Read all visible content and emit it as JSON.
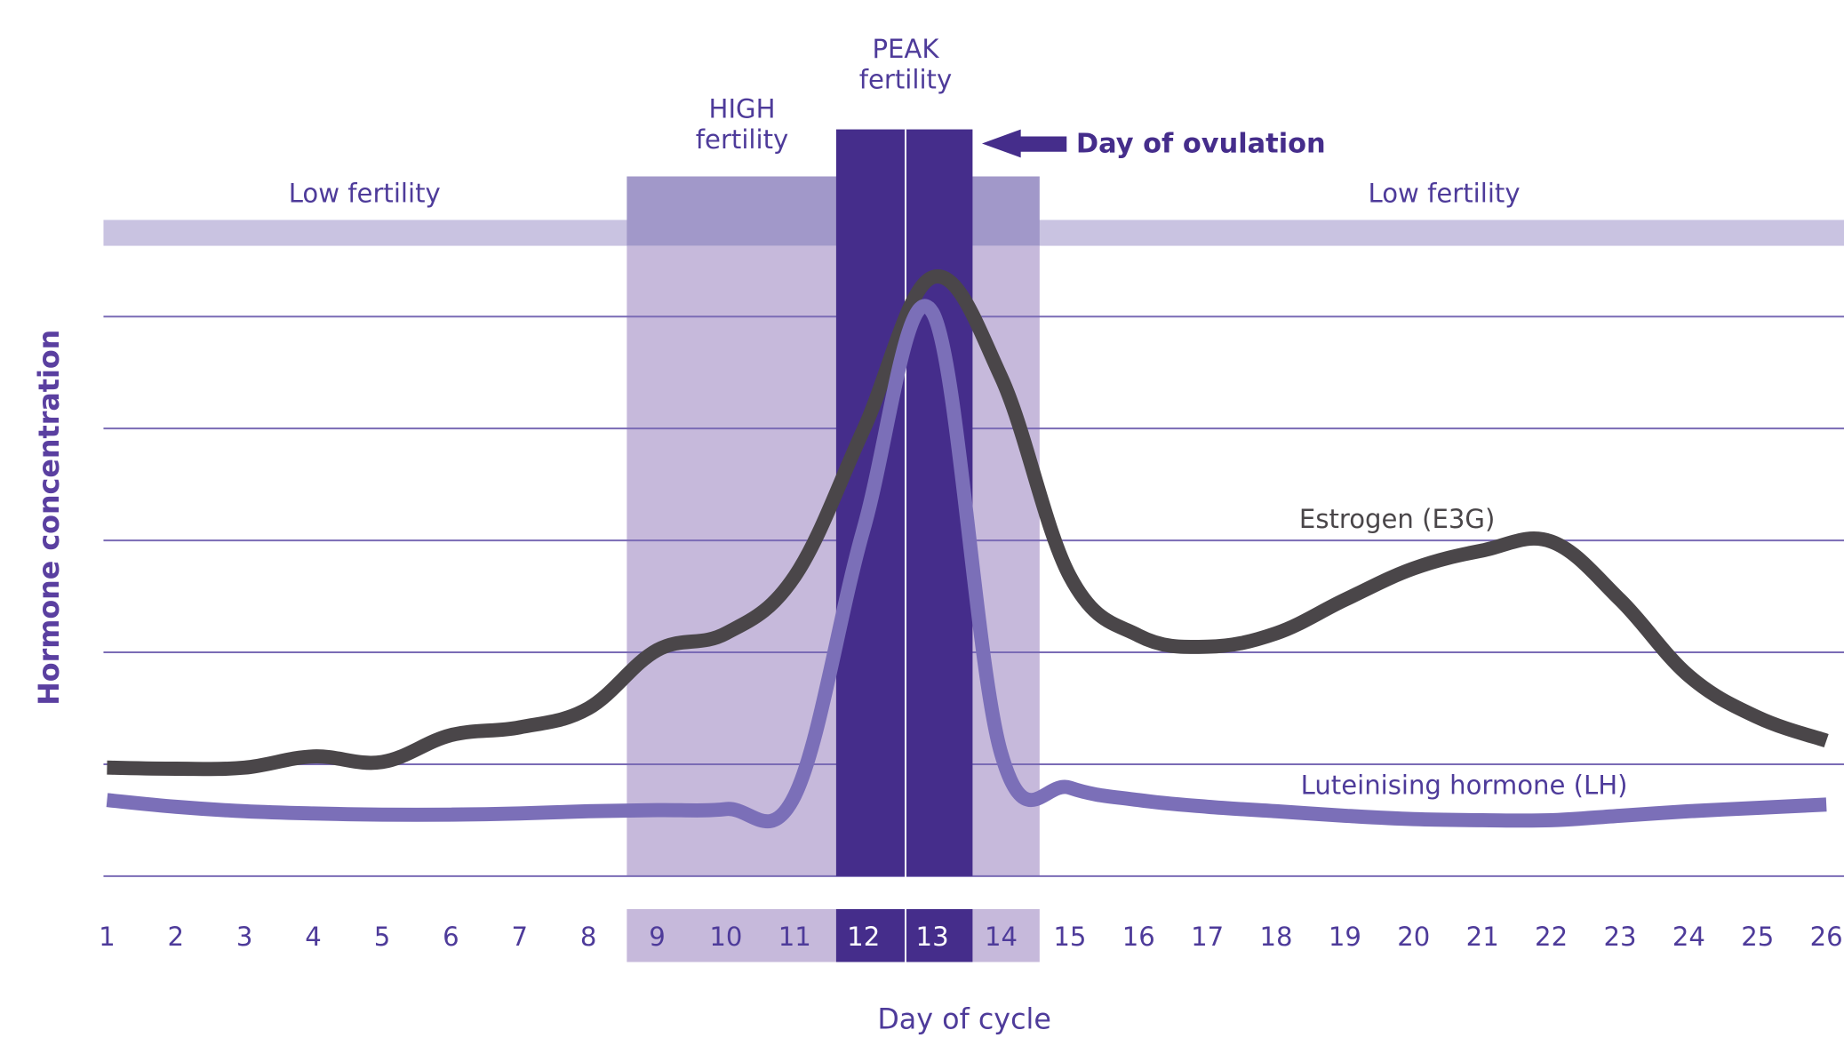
{
  "chart_data": {
    "type": "line",
    "ylabel": "Hormone concentration",
    "xlabel": "Day of cycle",
    "categories": [
      "1",
      "2",
      "3",
      "4",
      "5",
      "6",
      "7",
      "8",
      "9",
      "10",
      "11",
      "12",
      "13",
      "14",
      "15",
      "16",
      "17",
      "18",
      "19",
      "20",
      "21",
      "22",
      "23",
      "24",
      "25",
      "26"
    ],
    "series": [
      {
        "name": "Estrogen (E3G)",
        "color": "#4a4649",
        "values": [
          0.97,
          0.96,
          0.97,
          1.07,
          1.02,
          1.26,
          1.33,
          1.5,
          2.02,
          2.17,
          2.68,
          3.99,
          5.35,
          4.46,
          2.68,
          2.15,
          2.05,
          2.17,
          2.47,
          2.75,
          2.91,
          2.99,
          2.47,
          1.79,
          1.42,
          1.21
        ]
      },
      {
        "name": "Luteinising hormone (LH)",
        "color": "#7b6fb8",
        "values": [
          0.68,
          0.62,
          0.58,
          0.56,
          0.55,
          0.55,
          0.56,
          0.58,
          0.59,
          0.6,
          0.72,
          3.1,
          5.04,
          1.1,
          0.79,
          0.68,
          0.62,
          0.58,
          0.54,
          0.51,
          0.5,
          0.5,
          0.54,
          0.58,
          0.61,
          0.64
        ]
      }
    ],
    "ylim": [
      0,
      6
    ],
    "yticks": [
      0,
      1,
      2,
      3,
      4,
      5
    ],
    "grid": true,
    "annotations": {
      "low_left": "Low fertility",
      "low_right": "Low fertility",
      "high": [
        "HIGH",
        "fertility"
      ],
      "peak": [
        "PEAK",
        "fertility"
      ],
      "ovulation": "Day of ovulation"
    }
  }
}
